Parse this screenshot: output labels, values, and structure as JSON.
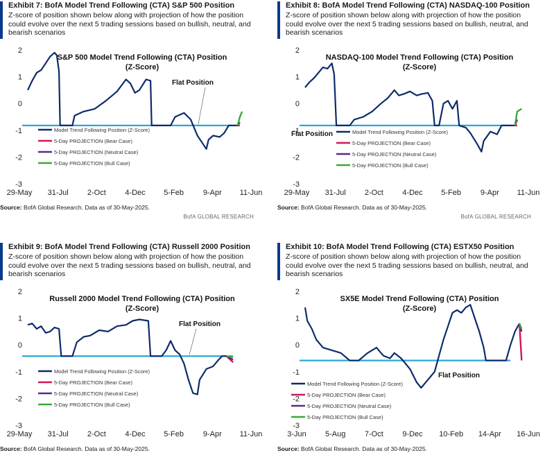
{
  "panels": [
    {
      "exhibit_title": "Exhibit 7: BofA Model Trend Following (CTA) S&P 500 Position",
      "subtitle": "Z-score of position shown below along with projection of how the position could evolve over the next 5 trading sessions based on bullish, neutral, and bearish scenarios",
      "source_label": "Source:",
      "source_text": "BofA Global Research.  Data as of 30-May-2025.",
      "research_label": "BofA GLOBAL RESEARCH",
      "chart_data": {
        "type": "line",
        "title": "S&P 500 Model Trend Following (CTA) Position",
        "title_line2": "(Z-Score)",
        "ylim": [
          -3,
          2
        ],
        "yticks": [
          "2",
          "1",
          "0",
          "-1",
          "-2",
          "-3"
        ],
        "xticks": [
          "29-May",
          "31-Jul",
          "2-Oct",
          "4-Dec",
          "5-Feb",
          "9-Apr",
          "11-Jun"
        ],
        "flat_position": -0.82,
        "flat_label": "Flat Position",
        "legend": [
          "Model Trend Following Position (Z-Score)",
          "5-Day PROJECTION (Bear Case)",
          "5-Day PROJECTION (Neutral Case)",
          "5-Day PROJECTION (Bull Case)"
        ],
        "series_colors": [
          "#0d2b6b",
          "#d4145a",
          "#5b2a86",
          "#3aa935"
        ],
        "flat_color": "#2aa7d8",
        "main": [
          [
            0,
            0.5
          ],
          [
            0.02,
            0.85
          ],
          [
            0.04,
            1.15
          ],
          [
            0.06,
            1.25
          ],
          [
            0.08,
            1.5
          ],
          [
            0.1,
            1.75
          ],
          [
            0.12,
            1.9
          ],
          [
            0.13,
            1.8
          ],
          [
            0.14,
            1.2
          ],
          [
            0.145,
            -0.82
          ],
          [
            0.17,
            -0.82
          ],
          [
            0.2,
            -0.82
          ],
          [
            0.21,
            -0.45
          ],
          [
            0.25,
            -0.3
          ],
          [
            0.3,
            -0.2
          ],
          [
            0.35,
            0.1
          ],
          [
            0.4,
            0.45
          ],
          [
            0.44,
            0.9
          ],
          [
            0.46,
            0.75
          ],
          [
            0.48,
            0.4
          ],
          [
            0.5,
            0.5
          ],
          [
            0.53,
            0.9
          ],
          [
            0.55,
            0.85
          ],
          [
            0.555,
            -0.82
          ],
          [
            0.6,
            -0.82
          ],
          [
            0.64,
            -0.82
          ],
          [
            0.66,
            -0.5
          ],
          [
            0.7,
            -0.35
          ],
          [
            0.73,
            -0.6
          ],
          [
            0.76,
            -1.2
          ],
          [
            0.78,
            -1.45
          ],
          [
            0.8,
            -1.7
          ],
          [
            0.81,
            -1.35
          ],
          [
            0.83,
            -1.2
          ],
          [
            0.86,
            -1.25
          ],
          [
            0.88,
            -1.1
          ],
          [
            0.9,
            -0.82
          ],
          [
            0.94,
            -0.82
          ]
        ],
        "projection": {
          "bear": [
            [
              0.94,
              -0.82
            ],
            [
              0.95,
              -0.82
            ]
          ],
          "neutral": [
            [
              0.94,
              -0.82
            ],
            [
              0.95,
              -0.7
            ]
          ],
          "bull": [
            [
              0.94,
              -0.82
            ],
            [
              0.95,
              -0.5
            ],
            [
              0.96,
              -0.3
            ]
          ]
        }
      }
    },
    {
      "exhibit_title": "Exhibit 8: BofA Model Trend Following (CTA) NASDAQ-100 Position",
      "subtitle": "Z-score of position shown below along with projection of how the position could evolve over the next 5 trading sessions based on bullish, neutral, and bearish scenarios",
      "source_label": "Source:",
      "source_text": "BofA Global Research.  Data as of 30-May-2025.",
      "research_label": "BofA GLOBAL RESEARCH",
      "chart_data": {
        "type": "line",
        "title": "NASDAQ-100 Model Trend Following (CTA) Position",
        "title_line2": "(Z-Score)",
        "ylim": [
          -3,
          2
        ],
        "yticks": [
          "2",
          "1",
          "0",
          "-1",
          "-2",
          "-3"
        ],
        "xticks": [
          "29-May",
          "31-Jul",
          "2-Oct",
          "4-Dec",
          "5-Feb",
          "9-Apr",
          "11-Jun"
        ],
        "flat_position": -0.82,
        "flat_label": "Flat Position",
        "legend": [
          "Model Trend Following Position (Z-Score)",
          "5-Day PROJECTION (Bear Case)",
          "5-Day PROJECTION (Neutral Case)",
          "5-Day PROJECTION (Bull Case)"
        ],
        "series_colors": [
          "#0d2b6b",
          "#d4145a",
          "#5b2a86",
          "#3aa935"
        ],
        "flat_color": "#2aa7d8",
        "main": [
          [
            0,
            0.6
          ],
          [
            0.02,
            0.8
          ],
          [
            0.04,
            0.95
          ],
          [
            0.06,
            1.15
          ],
          [
            0.08,
            1.35
          ],
          [
            0.1,
            1.3
          ],
          [
            0.12,
            1.5
          ],
          [
            0.13,
            1.1
          ],
          [
            0.14,
            -0.82
          ],
          [
            0.2,
            -0.82
          ],
          [
            0.22,
            -0.6
          ],
          [
            0.26,
            -0.5
          ],
          [
            0.3,
            -0.3
          ],
          [
            0.34,
            0.0
          ],
          [
            0.37,
            0.2
          ],
          [
            0.4,
            0.5
          ],
          [
            0.42,
            0.3
          ],
          [
            0.44,
            0.35
          ],
          [
            0.47,
            0.45
          ],
          [
            0.5,
            0.3
          ],
          [
            0.52,
            0.35
          ],
          [
            0.55,
            0.4
          ],
          [
            0.57,
            0.1
          ],
          [
            0.58,
            -0.82
          ],
          [
            0.6,
            -0.82
          ],
          [
            0.62,
            0.0
          ],
          [
            0.64,
            0.1
          ],
          [
            0.66,
            -0.2
          ],
          [
            0.68,
            0.1
          ],
          [
            0.69,
            -0.82
          ],
          [
            0.72,
            -0.9
          ],
          [
            0.74,
            -1.1
          ],
          [
            0.77,
            -1.5
          ],
          [
            0.79,
            -1.8
          ],
          [
            0.8,
            -1.4
          ],
          [
            0.83,
            -1.05
          ],
          [
            0.86,
            -1.15
          ],
          [
            0.88,
            -0.82
          ],
          [
            0.94,
            -0.82
          ]
        ],
        "projection": {
          "bear": [
            [
              0.94,
              -0.82
            ],
            [
              0.95,
              -0.82
            ]
          ],
          "neutral": [
            [
              0.94,
              -0.82
            ],
            [
              0.95,
              -0.6
            ]
          ],
          "bull": [
            [
              0.94,
              -0.82
            ],
            [
              0.95,
              -0.3
            ],
            [
              0.97,
              -0.2
            ]
          ]
        }
      }
    },
    {
      "exhibit_title": "Exhibit 9: BofA Model Trend Following (CTA) Russell 2000 Position",
      "subtitle": "Z-score of position shown below along with projection of how the position could evolve over the next 5 trading sessions based on bullish, neutral, and bearish scenarios",
      "source_label": "Source:",
      "source_text": "BofA Global Research.  Data as of 30-May-2025.",
      "research_label": "",
      "chart_data": {
        "type": "line",
        "title": "Russell 2000 Model Trend Following (CTA) Position",
        "title_line2": "(Z-Score)",
        "ylim": [
          -3,
          2
        ],
        "yticks": [
          "2",
          "1",
          "0",
          "-1",
          "-2",
          "-3"
        ],
        "xticks": [
          "29-May",
          "31-Jul",
          "2-Oct",
          "4-Dec",
          "5-Feb",
          "9-Apr",
          "11-Jun"
        ],
        "flat_position": -0.42,
        "flat_label": "Flat Position",
        "legend": [
          "Model Trend Following Position (Z-Score)",
          "5-Day PROJECTION (Bear Case)",
          "5-Day PROJECTION (Neutral Case)",
          "5-Day PROJECTION (Bull Case)"
        ],
        "series_colors": [
          "#0d2b6b",
          "#d4145a",
          "#5b2a86",
          "#3aa935"
        ],
        "flat_color": "#2aa7d8",
        "main": [
          [
            0,
            0.75
          ],
          [
            0.02,
            0.8
          ],
          [
            0.04,
            0.6
          ],
          [
            0.06,
            0.7
          ],
          [
            0.08,
            0.45
          ],
          [
            0.1,
            0.5
          ],
          [
            0.12,
            0.65
          ],
          [
            0.14,
            0.6
          ],
          [
            0.15,
            -0.42
          ],
          [
            0.2,
            -0.42
          ],
          [
            0.22,
            0.1
          ],
          [
            0.25,
            0.3
          ],
          [
            0.28,
            0.35
          ],
          [
            0.32,
            0.55
          ],
          [
            0.36,
            0.5
          ],
          [
            0.4,
            0.7
          ],
          [
            0.44,
            0.75
          ],
          [
            0.47,
            0.9
          ],
          [
            0.5,
            0.95
          ],
          [
            0.54,
            0.9
          ],
          [
            0.55,
            -0.42
          ],
          [
            0.6,
            -0.42
          ],
          [
            0.62,
            -0.2
          ],
          [
            0.64,
            0.15
          ],
          [
            0.66,
            -0.2
          ],
          [
            0.68,
            -0.35
          ],
          [
            0.7,
            -0.7
          ],
          [
            0.72,
            -1.3
          ],
          [
            0.74,
            -1.8
          ],
          [
            0.76,
            -1.85
          ],
          [
            0.77,
            -1.3
          ],
          [
            0.8,
            -0.9
          ],
          [
            0.83,
            -0.8
          ],
          [
            0.85,
            -0.6
          ],
          [
            0.87,
            -0.42
          ],
          [
            0.89,
            -0.42
          ]
        ],
        "projection": {
          "bear": [
            [
              0.89,
              -0.42
            ],
            [
              0.92,
              -0.65
            ]
          ],
          "neutral": [
            [
              0.89,
              -0.42
            ],
            [
              0.92,
              -0.55
            ]
          ],
          "bull": [
            [
              0.89,
              -0.42
            ],
            [
              0.92,
              -0.45
            ]
          ]
        }
      }
    },
    {
      "exhibit_title": "Exhibit 10: BofA Model Trend Following (CTA) ESTX50 Position",
      "subtitle": "Z-score of position shown below along with projection of how the position could evolve over the next 5 trading sessions based on bullish, neutral, and bearish scenarios",
      "source_label": "Source:",
      "source_text": "BofA Global Research.  Data as of 30-May-2025.",
      "research_label": "",
      "chart_data": {
        "type": "line",
        "title": "SX5E Model Trend Following (CTA) Position",
        "title_line2": "(Z-Score)",
        "ylim": [
          -3,
          2
        ],
        "yticks": [
          "2",
          "1",
          "0",
          "-1",
          "-2",
          "-3"
        ],
        "xticks": [
          "3-Jun",
          "5-Aug",
          "7-Oct",
          "9-Dec",
          "10-Feb",
          "14-Apr",
          "16-Jun"
        ],
        "flat_position": -0.58,
        "flat_label": "Flat Position",
        "legend": [
          "Model Trend Following Position (Z-Score)",
          "5-Day PROJECTION (Bear Case)",
          "5-Day PROJECTION (Neutral Case)",
          "5-Day PROJECTION (Bull Case)"
        ],
        "series_colors": [
          "#0d2b6b",
          "#d4145a",
          "#5b2a86",
          "#3aa935"
        ],
        "flat_color": "#2aa7d8",
        "main": [
          [
            0,
            1.4
          ],
          [
            0.01,
            0.9
          ],
          [
            0.03,
            0.6
          ],
          [
            0.05,
            0.2
          ],
          [
            0.08,
            -0.1
          ],
          [
            0.12,
            -0.2
          ],
          [
            0.16,
            -0.3
          ],
          [
            0.2,
            -0.58
          ],
          [
            0.24,
            -0.58
          ],
          [
            0.28,
            -0.3
          ],
          [
            0.32,
            -0.1
          ],
          [
            0.35,
            -0.4
          ],
          [
            0.38,
            -0.5
          ],
          [
            0.4,
            -0.3
          ],
          [
            0.43,
            -0.5
          ],
          [
            0.47,
            -0.9
          ],
          [
            0.5,
            -1.4
          ],
          [
            0.52,
            -1.6
          ],
          [
            0.55,
            -1.3
          ],
          [
            0.58,
            -1.0
          ],
          [
            0.6,
            -0.4
          ],
          [
            0.62,
            0.2
          ],
          [
            0.64,
            0.7
          ],
          [
            0.66,
            1.2
          ],
          [
            0.68,
            1.3
          ],
          [
            0.7,
            1.2
          ],
          [
            0.72,
            1.4
          ],
          [
            0.74,
            1.5
          ],
          [
            0.76,
            1.0
          ],
          [
            0.78,
            0.5
          ],
          [
            0.8,
            -0.1
          ],
          [
            0.81,
            -0.58
          ],
          [
            0.9,
            -0.58
          ],
          [
            0.92,
            0.0
          ],
          [
            0.94,
            0.5
          ],
          [
            0.96,
            0.8
          ]
        ],
        "projection": {
          "bear": [
            [
              0.96,
              0.8
            ],
            [
              0.97,
              -0.58
            ]
          ],
          "neutral": [
            [
              0.96,
              0.8
            ],
            [
              0.97,
              0.5
            ]
          ],
          "bull": [
            [
              0.96,
              0.8
            ],
            [
              0.97,
              0.6
            ]
          ]
        }
      }
    }
  ]
}
